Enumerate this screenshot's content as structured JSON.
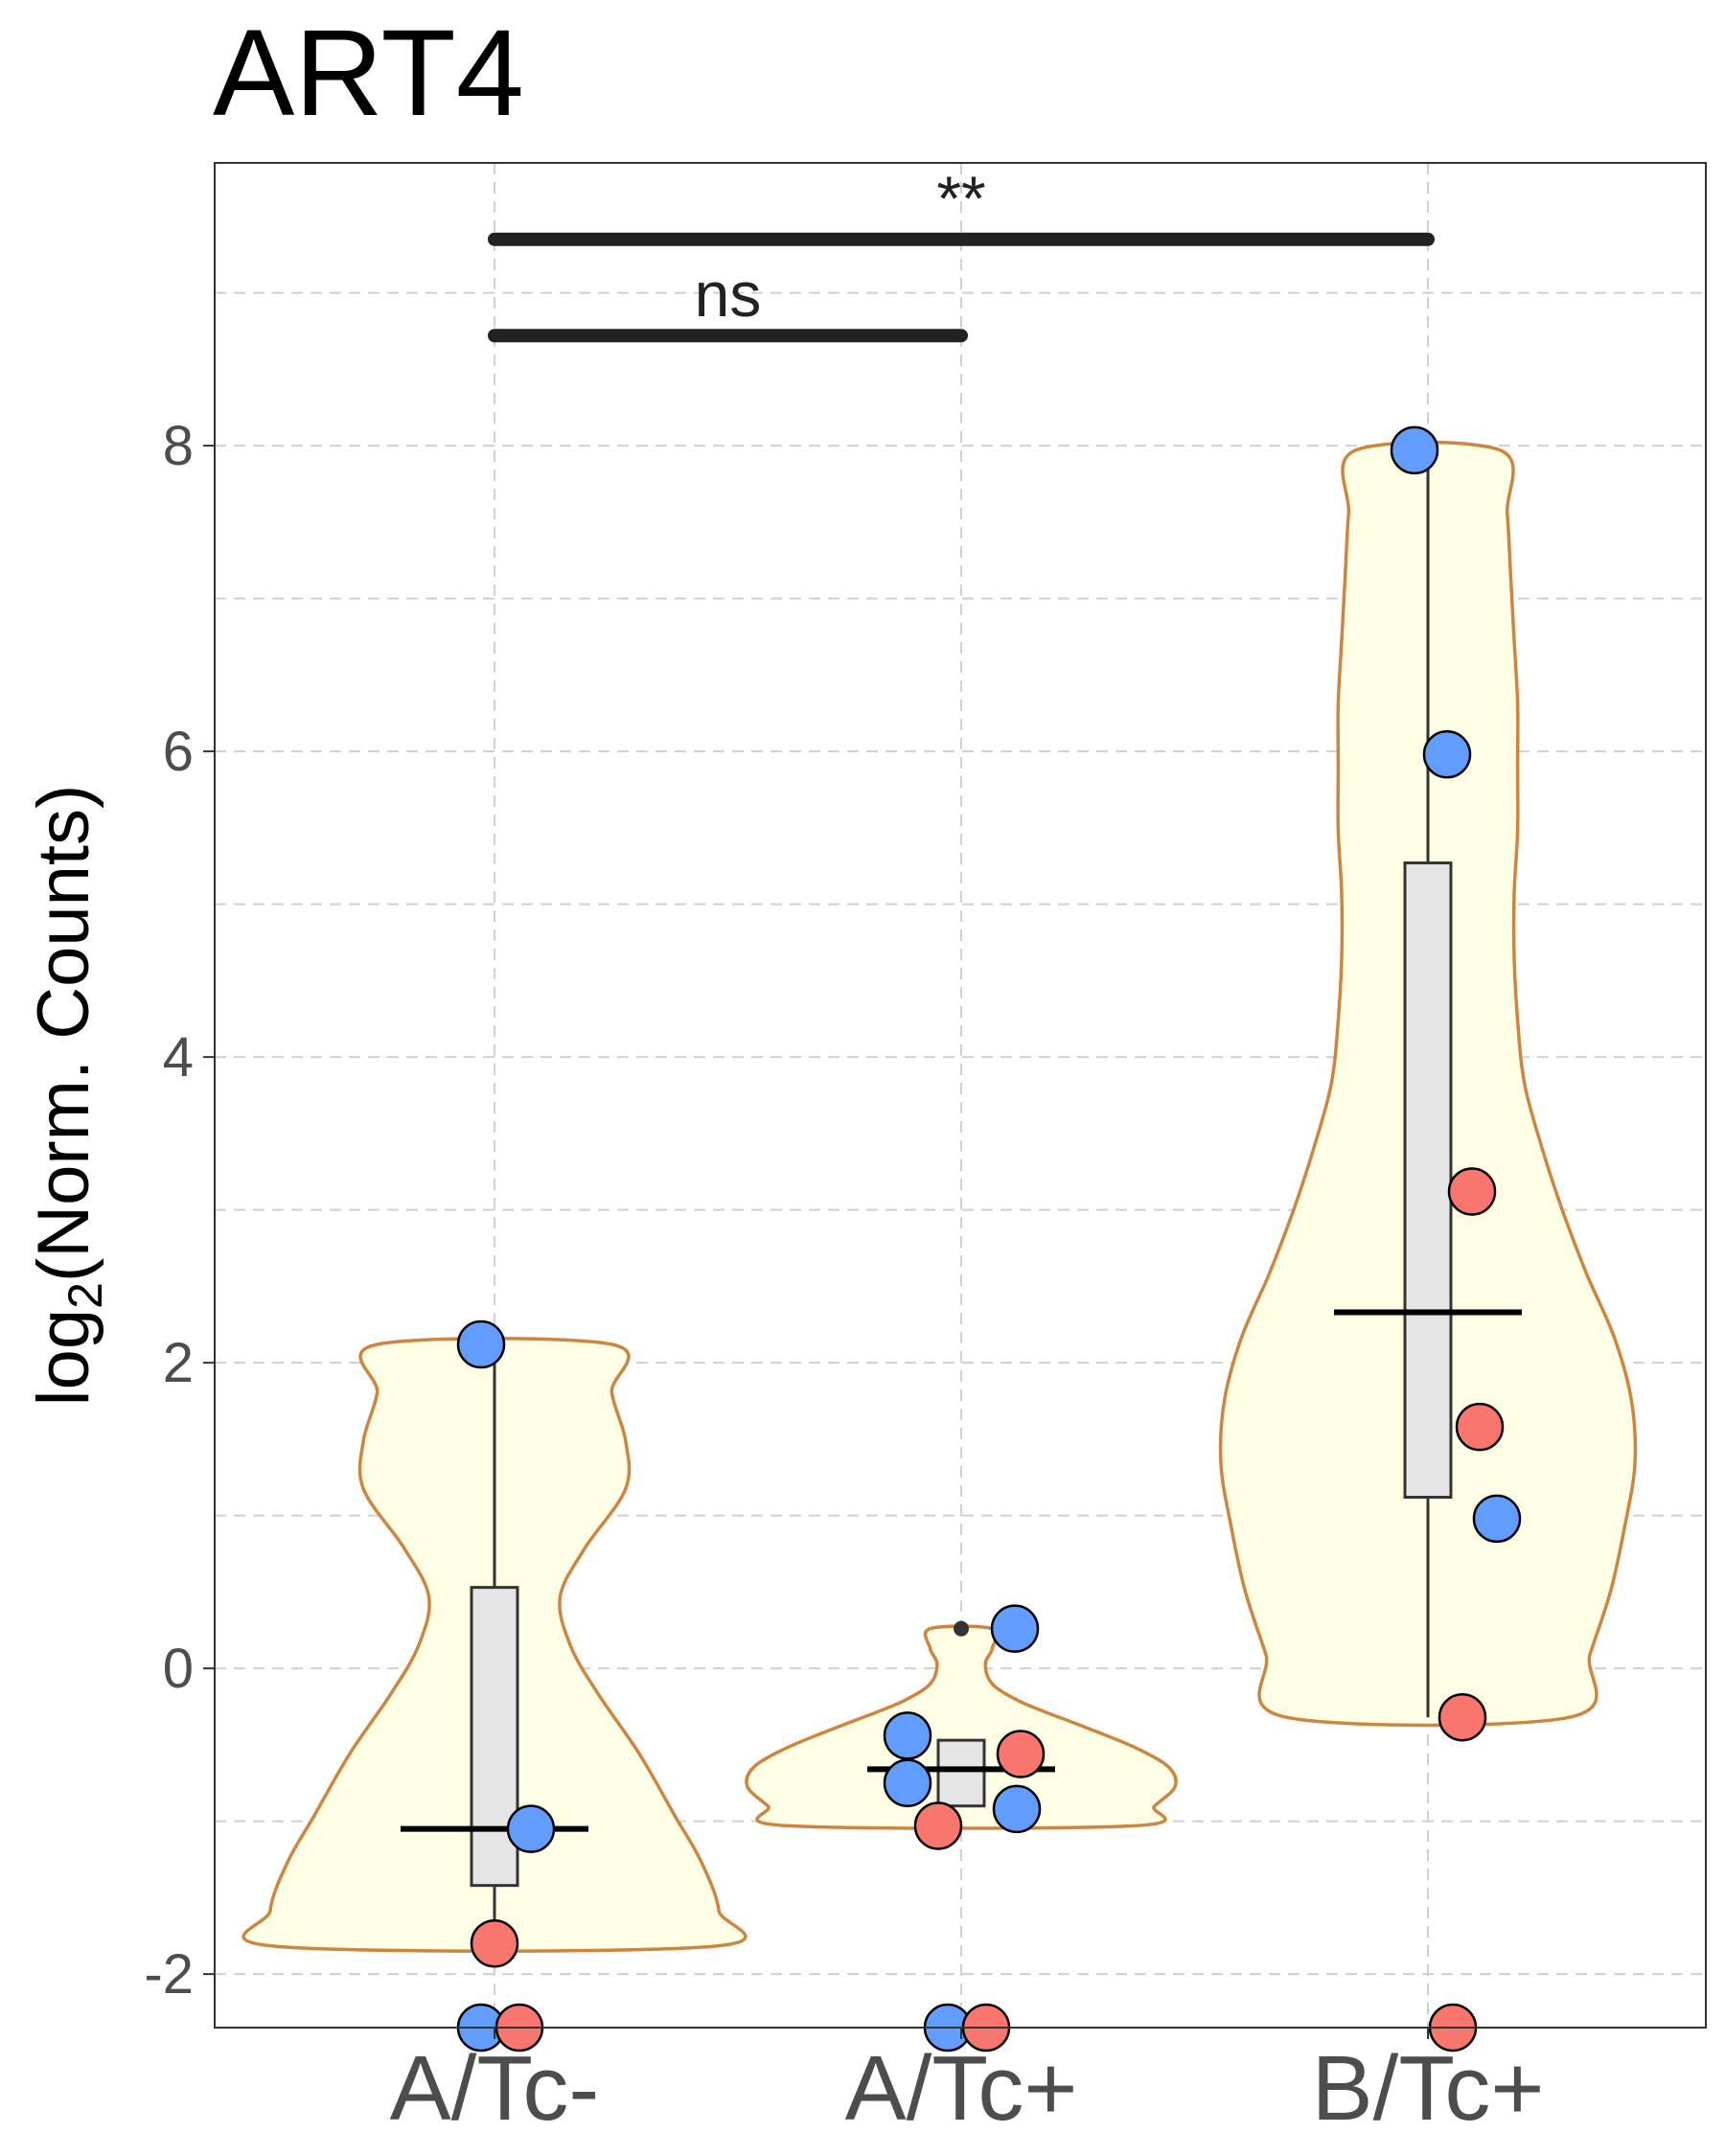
{
  "chart_data": {
    "type": "violin",
    "title": "ART4",
    "ylabel": {
      "base": "log",
      "subscript": "2",
      "rest": "(Norm. Counts)"
    },
    "xlabel": "",
    "ylim": [
      -2.35,
      9.85
    ],
    "yticks": [
      -2,
      0,
      2,
      4,
      6,
      8
    ],
    "ytick_labels": [
      "-2",
      "0",
      "2",
      "4",
      "6",
      "8"
    ],
    "grid": true,
    "categories": [
      "A/Tc-",
      "A/Tc+",
      "B/Tc+"
    ],
    "groups": [
      {
        "category": "A/Tc-",
        "violin_range": [
          -1.82,
          2.12
        ],
        "box": {
          "q1": -1.42,
          "median": -1.05,
          "q3": 0.53,
          "whisker_low": -1.82,
          "whisker_high": 2.12
        },
        "points": [
          {
            "y": 2.12,
            "color": "blue"
          },
          {
            "y": -1.05,
            "color": "blue"
          },
          {
            "y": -1.8,
            "color": "red"
          },
          {
            "y": -2.35,
            "color": "blue"
          },
          {
            "y": -2.35,
            "color": "red"
          }
        ]
      },
      {
        "category": "A/Tc+",
        "violin_range": [
          -1.03,
          0.26
        ],
        "box": {
          "q1": -0.9,
          "median": -0.66,
          "q3": -0.47,
          "whisker_low": -0.9,
          "whisker_high": -0.47
        },
        "outliers": [
          0.26
        ],
        "points": [
          {
            "y": 0.26,
            "color": "blue"
          },
          {
            "y": -0.44,
            "color": "blue"
          },
          {
            "y": -0.56,
            "color": "red"
          },
          {
            "y": -0.75,
            "color": "blue"
          },
          {
            "y": -0.92,
            "color": "blue"
          },
          {
            "y": -1.03,
            "color": "red"
          },
          {
            "y": -2.35,
            "color": "blue"
          },
          {
            "y": -2.35,
            "color": "red"
          }
        ]
      },
      {
        "category": "B/Tc+",
        "violin_range": [
          -0.32,
          7.97
        ],
        "box": {
          "q1": 1.12,
          "median": 2.33,
          "q3": 5.27,
          "whisker_low": -0.32,
          "whisker_high": 7.97
        },
        "points": [
          {
            "y": 7.97,
            "color": "blue"
          },
          {
            "y": 5.98,
            "color": "blue"
          },
          {
            "y": 3.12,
            "color": "red"
          },
          {
            "y": 1.58,
            "color": "red"
          },
          {
            "y": 0.98,
            "color": "blue"
          },
          {
            "y": -0.32,
            "color": "red"
          },
          {
            "y": -2.35,
            "color": "red"
          }
        ]
      }
    ],
    "comparisons": [
      {
        "from": "A/Tc-",
        "to": "A/Tc+",
        "y": 8.72,
        "label": "ns"
      },
      {
        "from": "A/Tc-",
        "to": "B/Tc+",
        "y": 9.35,
        "label": "**"
      }
    ],
    "colors": {
      "violin_fill": "#ffffe6",
      "violin_stroke": "#cd853f",
      "box_fill": "#e5e5e5",
      "box_stroke": "#333333",
      "blue": "#619cff",
      "red": "#f8766d",
      "grid": "#d0d0d0",
      "bracket": "#222222"
    }
  }
}
